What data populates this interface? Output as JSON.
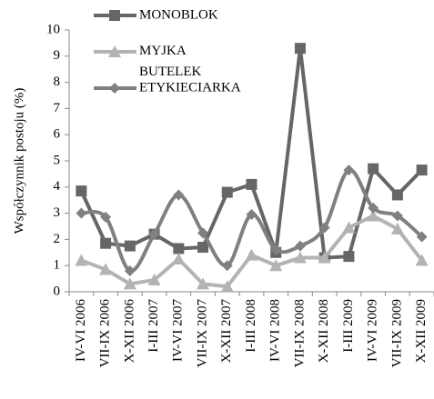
{
  "chart_data": {
    "type": "line",
    "y_label": "Współczynnik postoju (%)",
    "categories": [
      "IV-VI 2006",
      "VII-IX 2006",
      "X-XII 2006",
      "I-III 2007",
      "IV-VI 2007",
      "VII-IX 2007",
      "X-XII 2007",
      "I-III 2008",
      "IV-VI 2008",
      "VII-IX 2008",
      "X-XII 2008",
      "I-III 2009",
      "IV-VI 2009",
      "VII-IX 2009",
      "X-XII 2009"
    ],
    "series": [
      {
        "name": "MONOBLOK",
        "color": "#666666",
        "marker": "square",
        "smooth": false,
        "values": [
          3.85,
          1.85,
          1.75,
          2.2,
          1.65,
          1.7,
          3.8,
          4.1,
          1.5,
          9.3,
          1.3,
          1.35,
          4.7,
          3.7,
          4.65
        ]
      },
      {
        "name": "MYJKA BUTELEK",
        "color": "#b3b3b3",
        "marker": "triangle",
        "smooth": false,
        "values": [
          1.2,
          0.85,
          0.3,
          0.45,
          1.25,
          0.3,
          0.2,
          1.4,
          1.0,
          1.3,
          1.3,
          2.45,
          2.9,
          2.4,
          1.2
        ]
      },
      {
        "name": "ETYKIECIARKA",
        "color": "#808080",
        "marker": "diamond",
        "smooth": true,
        "values": [
          3.0,
          2.85,
          0.8,
          2.2,
          3.7,
          2.25,
          1.0,
          2.95,
          1.6,
          1.75,
          2.45,
          4.65,
          3.2,
          2.9,
          2.1
        ]
      }
    ],
    "ylim": [
      0,
      10
    ],
    "yticks": [
      0,
      1,
      2,
      3,
      4,
      5,
      6,
      7,
      8,
      9,
      10
    ],
    "grid": false
  }
}
